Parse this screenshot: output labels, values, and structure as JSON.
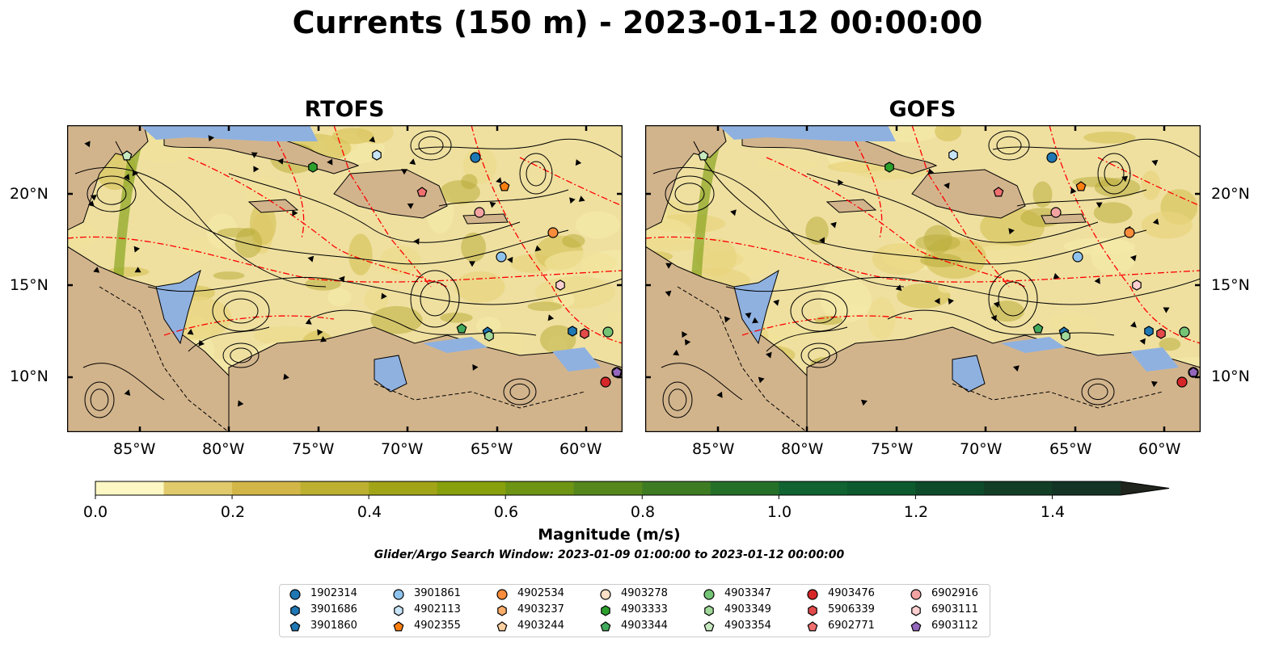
{
  "title": "Currents (150 m) - 2023-01-12 00:00:00",
  "panels": [
    {
      "title": "RTOFS"
    },
    {
      "title": "GOFS"
    }
  ],
  "lon_ticks": [
    "85°W",
    "80°W",
    "75°W",
    "70°W",
    "65°W",
    "60°W"
  ],
  "lat_ticks": [
    "20°N",
    "15°N",
    "10°N"
  ],
  "colorbar": {
    "label": "Magnitude (m/s)",
    "ticks": [
      "0.0",
      "0.2",
      "0.4",
      "0.6",
      "0.8",
      "1.0",
      "1.2",
      "1.4"
    ],
    "range": [
      0.0,
      1.5
    ],
    "extend": "max",
    "colors": [
      "#fdf7c3",
      "#f1e29a",
      "#e1ca6c",
      "#d2b748",
      "#bdb031",
      "#a2a418",
      "#87a00c",
      "#6e9414",
      "#55871c",
      "#3e7c24",
      "#247029",
      "#116331",
      "#0c5a2e",
      "#0d4b2a",
      "#123f26",
      "#143425",
      "#1a2a1c",
      "#1f241c"
    ]
  },
  "search_window": "Glider/Argo Search Window: 2023-01-09 01:00:00 to 2023-01-12 00:00:00",
  "legend": [
    {
      "label": "1902314",
      "marker": "circle",
      "color": "#1f77b4"
    },
    {
      "label": "3901686",
      "marker": "hexagon",
      "color": "#1f77b4"
    },
    {
      "label": "3901860",
      "marker": "pentagon",
      "color": "#1f77b4"
    },
    {
      "label": "3901861",
      "marker": "circle",
      "color": "#8ec3ee"
    },
    {
      "label": "4902113",
      "marker": "hexagon",
      "color": "#c8e4f8"
    },
    {
      "label": "4902355",
      "marker": "pentagon",
      "color": "#ff7f0e"
    },
    {
      "label": "4902534",
      "marker": "circle",
      "color": "#fd8d3c"
    },
    {
      "label": "4903237",
      "marker": "hexagon",
      "color": "#fdae6b"
    },
    {
      "label": "4903244",
      "marker": "pentagon",
      "color": "#fdd0a2"
    },
    {
      "label": "4903278",
      "marker": "circle",
      "color": "#fde0c5"
    },
    {
      "label": "4903333",
      "marker": "hexagon",
      "color": "#2ca02c"
    },
    {
      "label": "4903344",
      "marker": "pentagon",
      "color": "#41ab5d"
    },
    {
      "label": "4903347",
      "marker": "circle",
      "color": "#74c476"
    },
    {
      "label": "4903349",
      "marker": "hexagon",
      "color": "#a1d99b"
    },
    {
      "label": "4903354",
      "marker": "pentagon",
      "color": "#c7e9c0"
    },
    {
      "label": "4903476",
      "marker": "circle",
      "color": "#d62728"
    },
    {
      "label": "5906339",
      "marker": "hexagon",
      "color": "#e34a4a"
    },
    {
      "label": "6902771",
      "marker": "pentagon",
      "color": "#f07070"
    },
    {
      "label": "6902916",
      "marker": "circle",
      "color": "#f4a3a3"
    },
    {
      "label": "6903111",
      "marker": "hexagon",
      "color": "#fcd0d0"
    },
    {
      "label": "6903112",
      "marker": "pentagon",
      "color": "#9467bd"
    }
  ],
  "colors": {
    "land": "#d2b48c",
    "shallow_water": "#8fb1e0",
    "eez_lines": "#ff0000",
    "streamlines": "#000000"
  }
}
